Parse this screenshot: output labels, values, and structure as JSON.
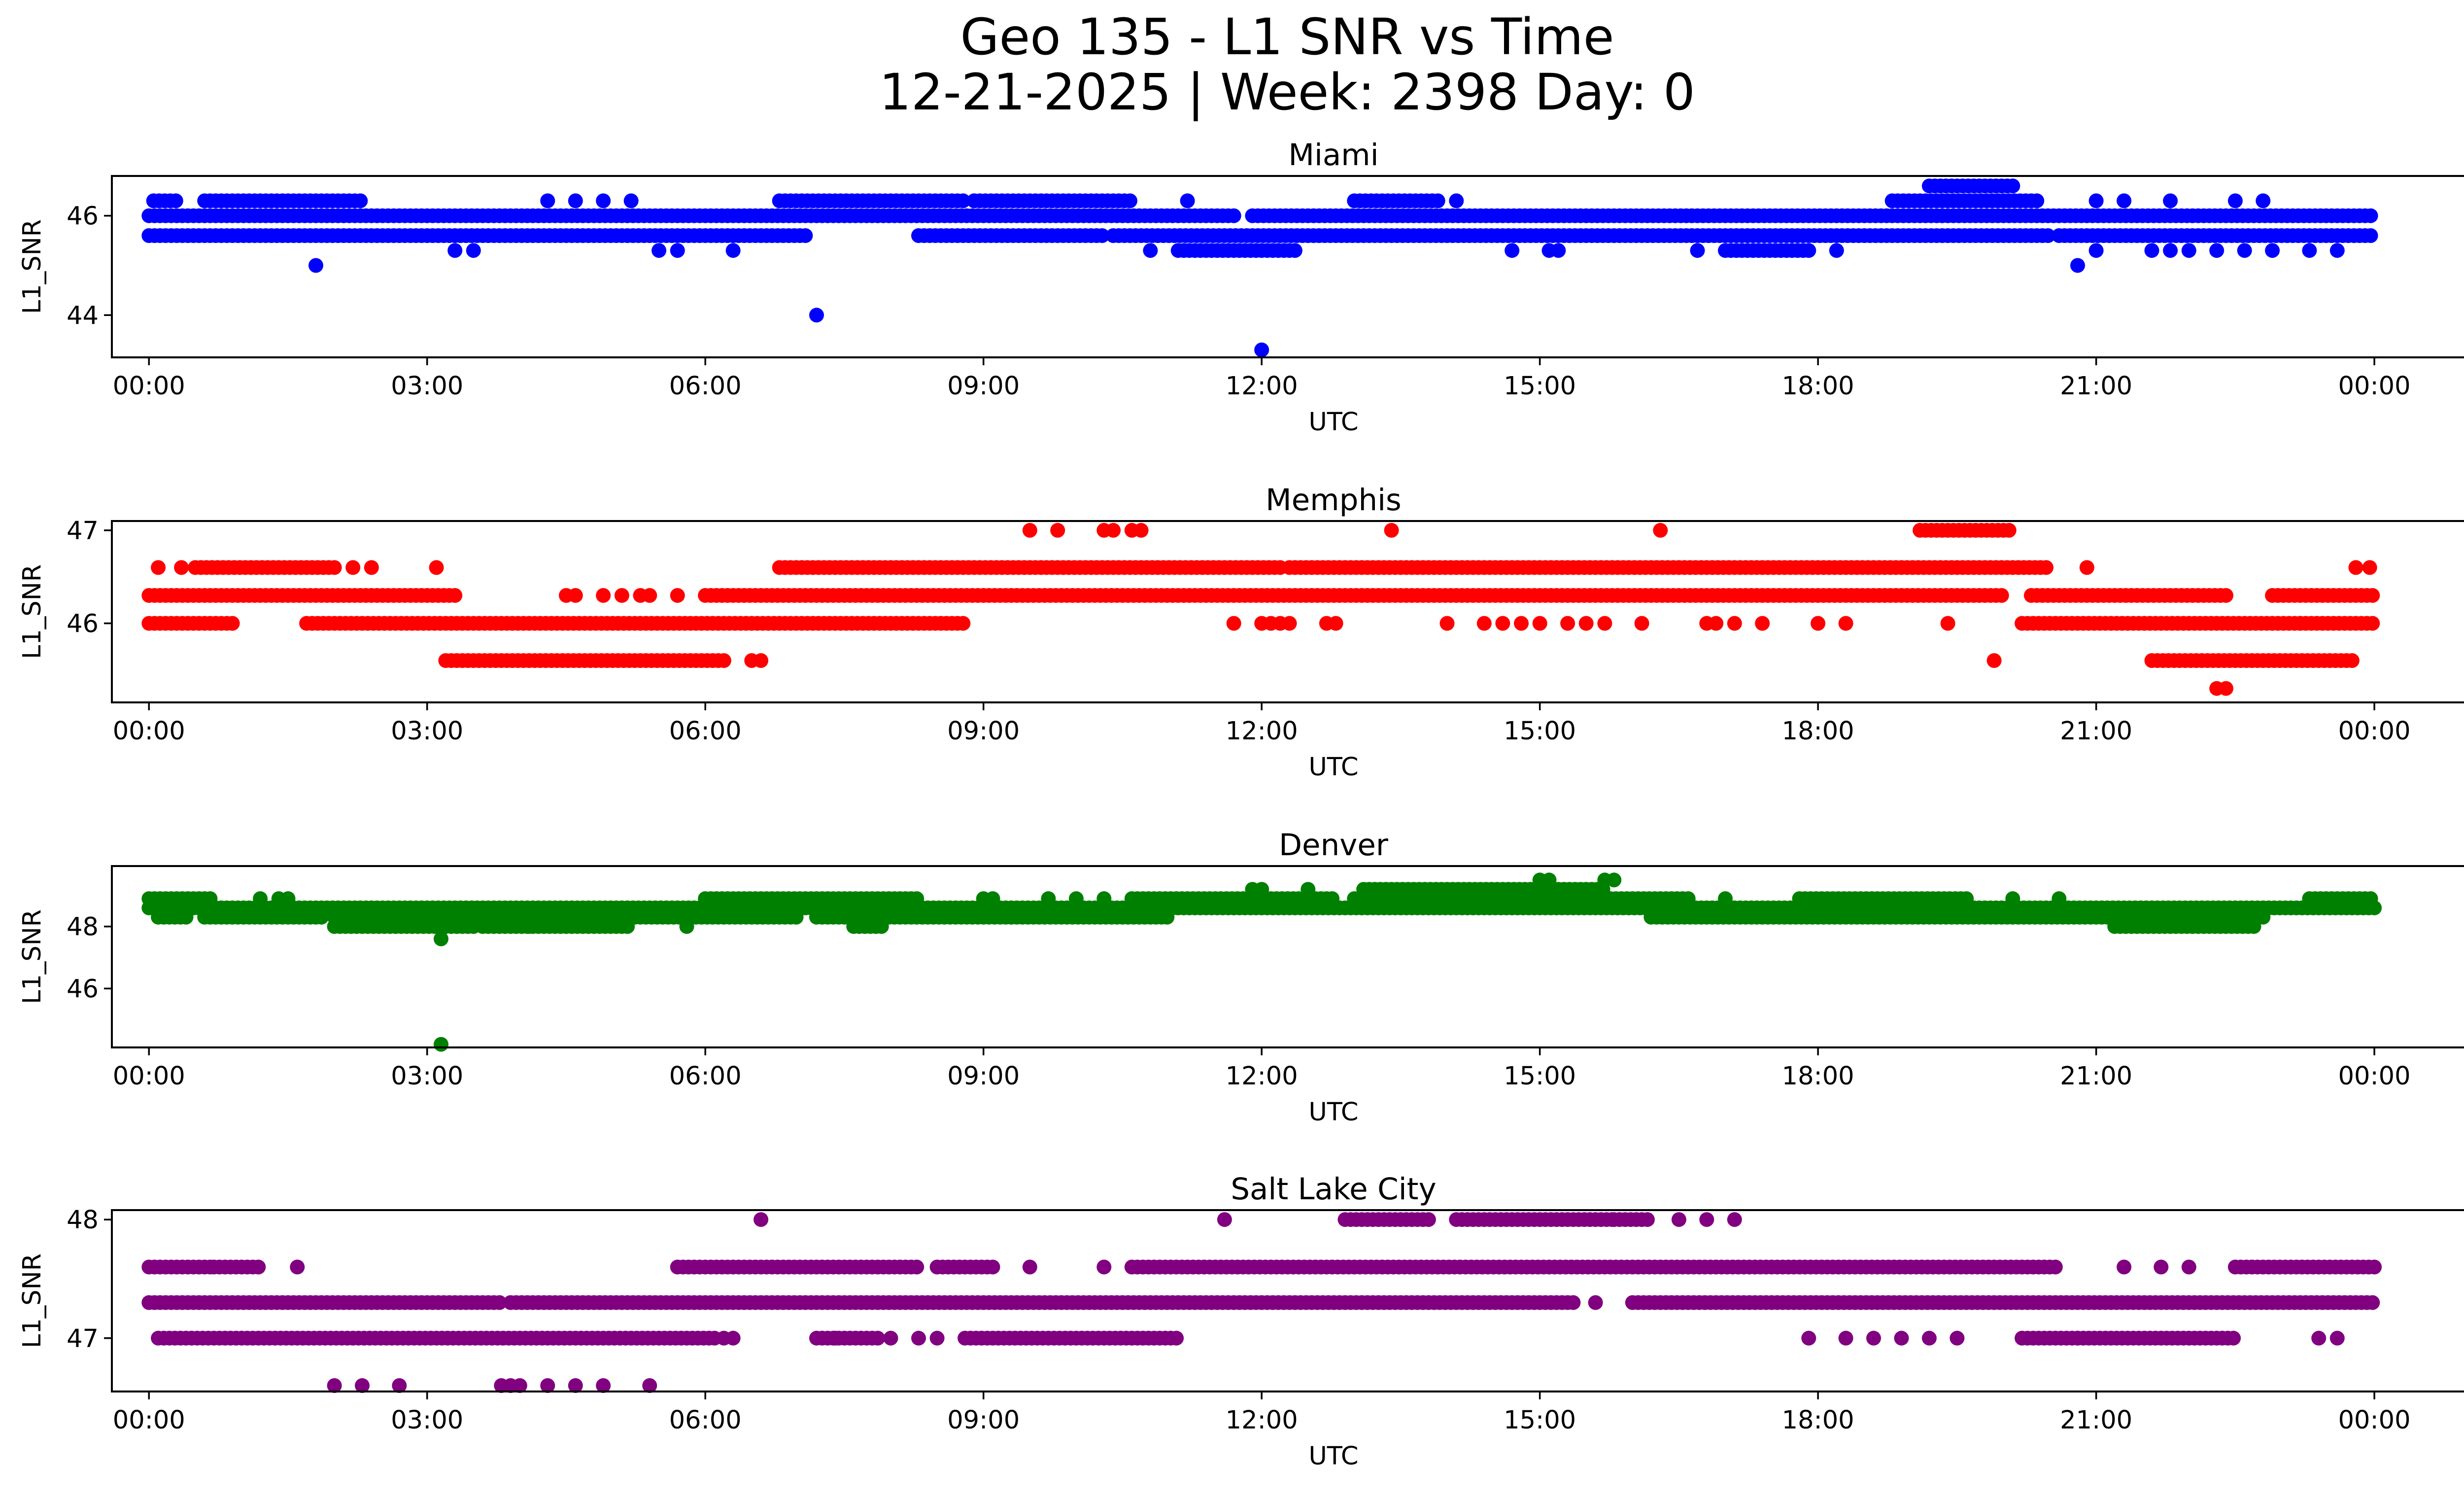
{
  "title_line1": "Geo 135 - L1 SNR vs Time",
  "title_line2": "12-21-2025 | Week: 2398 Day: 0",
  "chart_data": [
    {
      "type": "scatter",
      "title": "Miami",
      "xlabel": "UTC",
      "ylabel": "L1_SNR",
      "color": "#0000ff",
      "xlim_hours": [
        -0.4,
        25.95
      ],
      "ylim": [
        43.15,
        46.8
      ],
      "yticks": [
        44,
        46
      ],
      "ytick_labels": [
        "44",
        "46"
      ],
      "xtick_labels": [
        "00:00",
        "03:00",
        "06:00",
        "09:00",
        "12:00",
        "15:00",
        "18:00",
        "21:00",
        "00:00"
      ],
      "runs": [
        {
          "y": 46.0,
          "ranges": [
            [
              0.0,
              11.7
            ],
            [
              11.9,
              24.0
            ]
          ]
        },
        {
          "y": 45.6,
          "ranges": [
            [
              0.0,
              7.1
            ],
            [
              8.3,
              10.3
            ],
            [
              10.4,
              20.5
            ],
            [
              20.6,
              24.0
            ]
          ]
        },
        {
          "y": 46.3,
          "ranges": [
            [
              0.05,
              0.3
            ],
            [
              0.6,
              2.3
            ],
            [
              6.8,
              8.8
            ],
            [
              8.9,
              10.6
            ],
            [
              13.0,
              13.9
            ],
            [
              18.8,
              20.4
            ]
          ]
        },
        {
          "y": 45.3,
          "ranges": [
            [
              11.1,
              12.4
            ],
            [
              17.0,
              17.9
            ]
          ]
        },
        {
          "y": 46.6,
          "ranges": [
            [
              19.2,
              20.1
            ]
          ]
        }
      ],
      "points": [
        [
          1.8,
          45.0
        ],
        [
          7.2,
          44.0
        ],
        [
          12.0,
          43.3
        ],
        [
          20.8,
          45.0
        ],
        [
          3.3,
          45.3
        ],
        [
          3.5,
          45.3
        ],
        [
          5.5,
          45.3
        ],
        [
          5.7,
          45.3
        ],
        [
          6.3,
          45.3
        ],
        [
          10.8,
          45.3
        ],
        [
          14.7,
          45.3
        ],
        [
          15.1,
          45.3
        ],
        [
          15.2,
          45.3
        ],
        [
          16.7,
          45.3
        ],
        [
          18.2,
          45.3
        ],
        [
          21.0,
          45.3
        ],
        [
          21.6,
          45.3
        ],
        [
          21.8,
          45.3
        ],
        [
          22.0,
          45.3
        ],
        [
          22.3,
          45.3
        ],
        [
          22.6,
          45.3
        ],
        [
          22.9,
          45.3
        ],
        [
          23.3,
          45.3
        ],
        [
          23.6,
          45.3
        ],
        [
          4.3,
          46.3
        ],
        [
          4.6,
          46.3
        ],
        [
          4.9,
          46.3
        ],
        [
          5.2,
          46.3
        ],
        [
          8.9,
          46.3
        ],
        [
          11.2,
          46.3
        ],
        [
          14.1,
          46.3
        ],
        [
          21.0,
          46.3
        ],
        [
          21.3,
          46.3
        ],
        [
          21.8,
          46.3
        ],
        [
          22.5,
          46.3
        ],
        [
          22.8,
          46.3
        ]
      ]
    },
    {
      "type": "scatter",
      "title": "Memphis",
      "xlabel": "UTC",
      "ylabel": "L1_SNR",
      "color": "#ff0000",
      "xlim_hours": [
        -0.4,
        25.95
      ],
      "ylim": [
        45.15,
        47.1
      ],
      "yticks": [
        46,
        47
      ],
      "ytick_labels": [
        "46",
        "47"
      ],
      "xtick_labels": [
        "00:00",
        "03:00",
        "06:00",
        "09:00",
        "12:00",
        "15:00",
        "18:00",
        "21:00",
        "00:00"
      ],
      "runs": [
        {
          "y": 46.3,
          "ranges": [
            [
              0.0,
              3.3
            ],
            [
              6.0,
              20.0
            ],
            [
              20.3,
              22.4
            ],
            [
              22.9,
              24.0
            ]
          ]
        },
        {
          "y": 46.0,
          "ranges": [
            [
              0.0,
              0.9
            ],
            [
              1.7,
              8.8
            ],
            [
              20.2,
              24.0
            ]
          ]
        },
        {
          "y": 46.6,
          "ranges": [
            [
              0.5,
              2.0
            ],
            [
              6.8,
              12.2
            ],
            [
              12.3,
              20.5
            ]
          ]
        },
        {
          "y": 45.6,
          "ranges": [
            [
              3.2,
              6.2
            ],
            [
              21.6,
              23.8
            ]
          ]
        },
        {
          "y": 47.0,
          "ranges": [
            [
              19.1,
              20.1
            ]
          ]
        }
      ],
      "points": [
        [
          0.1,
          46.6
        ],
        [
          0.35,
          46.6
        ],
        [
          2.2,
          46.6
        ],
        [
          2.4,
          46.6
        ],
        [
          3.1,
          46.6
        ],
        [
          20.9,
          46.6
        ],
        [
          23.8,
          46.6
        ],
        [
          23.95,
          46.6
        ],
        [
          9.5,
          47.0
        ],
        [
          9.8,
          47.0
        ],
        [
          10.3,
          47.0
        ],
        [
          10.4,
          47.0
        ],
        [
          10.6,
          47.0
        ],
        [
          10.7,
          47.0
        ],
        [
          13.4,
          47.0
        ],
        [
          16.3,
          47.0
        ],
        [
          11.7,
          46.0
        ],
        [
          12.0,
          46.0
        ],
        [
          12.1,
          46.0
        ],
        [
          12.2,
          46.0
        ],
        [
          12.3,
          46.0
        ],
        [
          12.7,
          46.0
        ],
        [
          12.8,
          46.0
        ],
        [
          14.0,
          46.0
        ],
        [
          14.4,
          46.0
        ],
        [
          14.6,
          46.0
        ],
        [
          14.8,
          46.0
        ],
        [
          15.0,
          46.0
        ],
        [
          15.3,
          46.0
        ],
        [
          15.5,
          46.0
        ],
        [
          15.7,
          46.0
        ],
        [
          16.1,
          46.0
        ],
        [
          16.8,
          46.0
        ],
        [
          16.9,
          46.0
        ],
        [
          17.1,
          46.0
        ],
        [
          17.4,
          46.0
        ],
        [
          18.0,
          46.0
        ],
        [
          18.3,
          46.0
        ],
        [
          19.4,
          46.0
        ],
        [
          4.5,
          46.3
        ],
        [
          4.6,
          46.3
        ],
        [
          4.9,
          46.3
        ],
        [
          5.1,
          46.3
        ],
        [
          5.3,
          46.3
        ],
        [
          5.4,
          46.3
        ],
        [
          5.7,
          46.3
        ],
        [
          6.6,
          45.6
        ],
        [
          6.5,
          45.6
        ],
        [
          22.3,
          45.3
        ],
        [
          22.4,
          45.3
        ],
        [
          19.9,
          45.6
        ],
        [
          23.2,
          46.0
        ]
      ]
    },
    {
      "type": "scatter",
      "title": "Denver",
      "xlabel": "UTC",
      "ylabel": "L1_SNR",
      "color": "#008000",
      "xlim_hours": [
        -0.4,
        25.95
      ],
      "ylim": [
        44.1,
        49.95
      ],
      "yticks": [
        46,
        48
      ],
      "ytick_labels": [
        "46",
        "48"
      ],
      "xtick_labels": [
        "00:00",
        "03:00",
        "06:00",
        "09:00",
        "12:00",
        "15:00",
        "18:00",
        "21:00",
        "00:00"
      ],
      "runs": [
        {
          "y": 48.6,
          "ranges": [
            [
              0.0,
              24.0
            ]
          ]
        },
        {
          "y": 48.3,
          "ranges": [
            [
              0.1,
              0.4
            ],
            [
              0.6,
              1.9
            ],
            [
              2.0,
              7.0
            ],
            [
              7.2,
              11.0
            ],
            [
              16.2,
              21.5
            ],
            [
              21.6,
              22.8
            ]
          ]
        },
        {
          "y": 48.0,
          "ranges": [
            [
              2.0,
              3.5
            ],
            [
              3.6,
              5.2
            ],
            [
              7.6,
              7.9
            ],
            [
              21.2,
              22.7
            ]
          ]
        },
        {
          "y": 48.9,
          "ranges": [
            [
              0.0,
              0.7
            ],
            [
              6.0,
              8.3
            ],
            [
              10.6,
              12.8
            ],
            [
              13.0,
              16.6
            ],
            [
              17.8,
              19.6
            ],
            [
              23.3,
              24.0
            ]
          ]
        },
        {
          "y": 49.2,
          "ranges": [
            [
              13.1,
              15.7
            ]
          ]
        }
      ],
      "points": [
        [
          3.15,
          47.6
        ],
        [
          3.15,
          44.2
        ],
        [
          15.0,
          49.5
        ],
        [
          15.1,
          49.5
        ],
        [
          15.7,
          49.5
        ],
        [
          15.8,
          49.5
        ],
        [
          11.9,
          49.2
        ],
        [
          12.0,
          49.2
        ],
        [
          12.5,
          49.2
        ],
        [
          9.0,
          48.9
        ],
        [
          9.1,
          48.9
        ],
        [
          9.7,
          48.9
        ],
        [
          10.0,
          48.9
        ],
        [
          10.3,
          48.9
        ],
        [
          17.0,
          48.9
        ],
        [
          20.1,
          48.9
        ],
        [
          20.6,
          48.9
        ],
        [
          1.2,
          48.9
        ],
        [
          1.4,
          48.9
        ],
        [
          1.5,
          48.9
        ],
        [
          5.8,
          48.0
        ],
        [
          4.1,
          48.0
        ],
        [
          9.3,
          48.3
        ]
      ]
    },
    {
      "type": "scatter",
      "title": "Salt Lake City",
      "xlabel": "UTC",
      "ylabel": "L1_SNR",
      "color": "#800080",
      "xlim_hours": [
        -0.4,
        25.95
      ],
      "ylim": [
        46.55,
        48.08
      ],
      "yticks": [
        47,
        48
      ],
      "ytick_labels": [
        "47",
        "48"
      ],
      "xtick_labels": [
        "00:00",
        "03:00",
        "06:00",
        "09:00",
        "12:00",
        "15:00",
        "18:00",
        "21:00",
        "00:00"
      ],
      "runs": [
        {
          "y": 47.3,
          "ranges": [
            [
              0.0,
              3.8
            ],
            [
              3.9,
              15.4
            ],
            [
              16.0,
              24.0
            ]
          ]
        },
        {
          "y": 47.0,
          "ranges": [
            [
              0.1,
              6.1
            ],
            [
              7.2,
              7.9
            ],
            [
              8.8,
              11.1
            ],
            [
              20.2,
              22.5
            ]
          ]
        },
        {
          "y": 47.6,
          "ranges": [
            [
              0.0,
              0.7
            ],
            [
              0.7,
              1.2
            ],
            [
              5.7,
              8.3
            ],
            [
              8.5,
              9.1
            ],
            [
              10.6,
              20.6
            ],
            [
              22.5,
              24.0
            ]
          ]
        },
        {
          "y": 48.0,
          "ranges": [
            [
              12.9,
              13.8
            ],
            [
              14.1,
              15.8
            ],
            [
              15.8,
              16.2
            ]
          ]
        }
      ],
      "points": [
        [
          1.6,
          47.6
        ],
        [
          9.5,
          47.6
        ],
        [
          10.3,
          47.6
        ],
        [
          21.3,
          47.6
        ],
        [
          21.7,
          47.6
        ],
        [
          22.0,
          47.6
        ],
        [
          6.6,
          48.0
        ],
        [
          11.6,
          48.0
        ],
        [
          16.5,
          48.0
        ],
        [
          16.8,
          48.0
        ],
        [
          17.1,
          48.0
        ],
        [
          6.2,
          47.0
        ],
        [
          6.3,
          47.0
        ],
        [
          7.4,
          47.0
        ],
        [
          8.0,
          47.0
        ],
        [
          8.3,
          47.0
        ],
        [
          8.5,
          47.0
        ],
        [
          17.9,
          47.0
        ],
        [
          18.3,
          47.0
        ],
        [
          18.6,
          47.0
        ],
        [
          18.9,
          47.0
        ],
        [
          19.2,
          47.0
        ],
        [
          19.5,
          47.0
        ],
        [
          20.8,
          47.0
        ],
        [
          23.4,
          47.0
        ],
        [
          23.6,
          47.0
        ],
        [
          15.6,
          47.3
        ],
        [
          2.0,
          46.6
        ],
        [
          2.3,
          46.6
        ],
        [
          2.7,
          46.6
        ],
        [
          3.8,
          46.6
        ],
        [
          3.9,
          46.6
        ],
        [
          4.0,
          46.6
        ],
        [
          4.3,
          46.6
        ],
        [
          4.6,
          46.6
        ],
        [
          4.9,
          46.6
        ],
        [
          5.4,
          46.6
        ]
      ]
    }
  ]
}
